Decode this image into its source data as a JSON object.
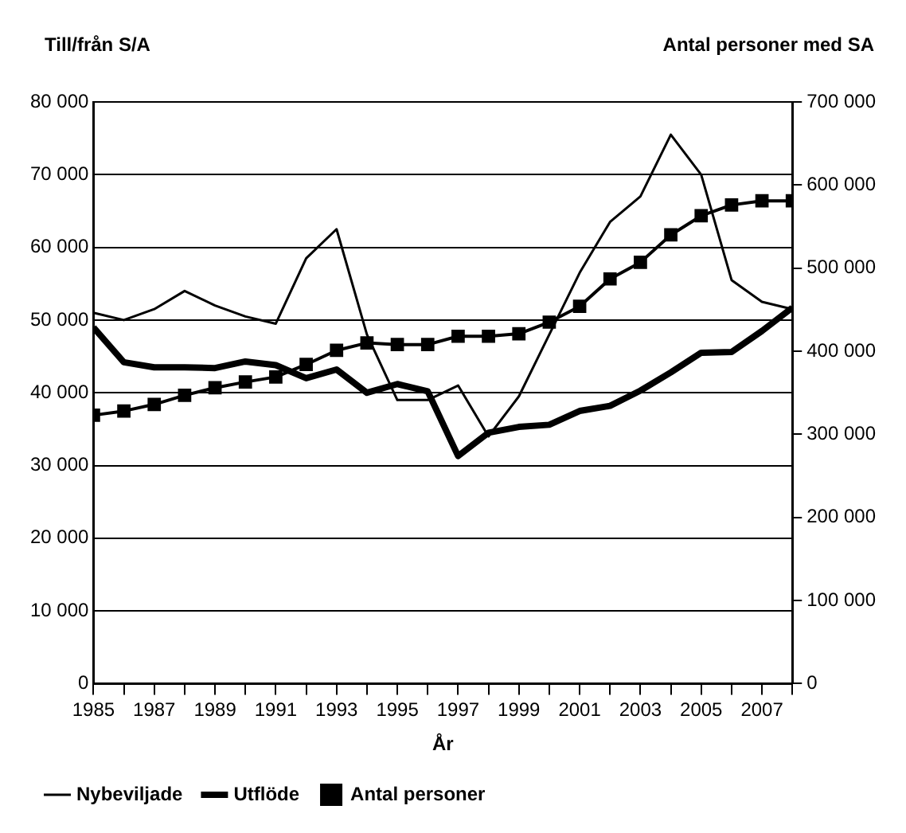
{
  "chart_data": {
    "type": "line",
    "ylabel": "Till/från S/A",
    "y2label": "Antal personer med SA",
    "xlabel": "År",
    "x": [
      1985,
      1986,
      1987,
      1988,
      1989,
      1990,
      1991,
      1992,
      1993,
      1994,
      1995,
      1996,
      1997,
      1998,
      1999,
      2000,
      2001,
      2002,
      2003,
      2004,
      2005,
      2006,
      2007,
      2008
    ],
    "series": [
      {
        "name": "Nybeviljade",
        "color": "#000000",
        "marker": "none",
        "values": [
          51000,
          50000,
          51500,
          54000,
          52000,
          50500,
          49500,
          58500,
          62500,
          48000,
          39000,
          39000,
          41000,
          34000,
          39500,
          48000,
          56500,
          63500,
          67000,
          75500,
          70000,
          55500,
          52500,
          51500
        ]
      },
      {
        "name": "Utflöde",
        "color": "#000000",
        "marker": "none",
        "values": [
          49000,
          44200,
          43500,
          43500,
          43400,
          44300,
          43800,
          42000,
          43200,
          40000,
          41200,
          40200,
          31300,
          34500,
          35300,
          35600,
          37500,
          38200,
          40300,
          42800,
          45500,
          45600,
          48500,
          51700
        ]
      },
      {
        "name": "Antal personer",
        "color": "#000000",
        "marker": "square",
        "axis": "y2",
        "values": [
          323000,
          328000,
          336000,
          347000,
          356000,
          363000,
          369000,
          384000,
          401000,
          410000,
          408000,
          408000,
          418000,
          418000,
          421000,
          435000,
          454000,
          487000,
          507000,
          540000,
          563000,
          576000,
          581000,
          581000
        ]
      }
    ],
    "xlim": [
      1985,
      2008
    ],
    "xticks": [
      1985,
      {
        "value": 1986,
        "label": null
      },
      1987,
      {
        "value": 1988,
        "label": null
      },
      1989,
      {
        "value": 1990,
        "label": null
      },
      1991,
      {
        "value": 1992,
        "label": null
      },
      1993,
      {
        "value": 1994,
        "label": null
      },
      1995,
      {
        "value": 1996,
        "label": null
      },
      1997,
      {
        "value": 1998,
        "label": null
      },
      1999,
      {
        "value": 2000,
        "label": null
      },
      2001,
      {
        "value": 2002,
        "label": null
      },
      2003,
      {
        "value": 2004,
        "label": null
      },
      2005,
      {
        "value": 2006,
        "label": null
      },
      2007,
      {
        "value": 2008,
        "label": null
      }
    ],
    "ylim": [
      0,
      80000
    ],
    "yticks": [
      0,
      {
        "value": 10000,
        "label": "10 000"
      },
      {
        "value": 20000,
        "label": "20 000"
      },
      {
        "value": 30000,
        "label": "30 000"
      },
      {
        "value": 40000,
        "label": "40 000"
      },
      {
        "value": 50000,
        "label": "50 000"
      },
      {
        "value": 60000,
        "label": "60 000"
      },
      {
        "value": 70000,
        "label": "70 000"
      },
      {
        "value": 80000,
        "label": "80 000"
      }
    ],
    "y2lim": [
      0,
      700000
    ],
    "y2ticks": [
      0,
      {
        "value": 100000,
        "label": "100 000"
      },
      {
        "value": 200000,
        "label": "200 000"
      },
      {
        "value": 300000,
        "label": "300 000"
      },
      {
        "value": 400000,
        "label": "400 000"
      },
      {
        "value": 500000,
        "label": "500 000"
      },
      {
        "value": 600000,
        "label": "600 000"
      },
      {
        "value": 700000,
        "label": "700 000"
      }
    ],
    "grid": "y",
    "legend": "bottom"
  }
}
